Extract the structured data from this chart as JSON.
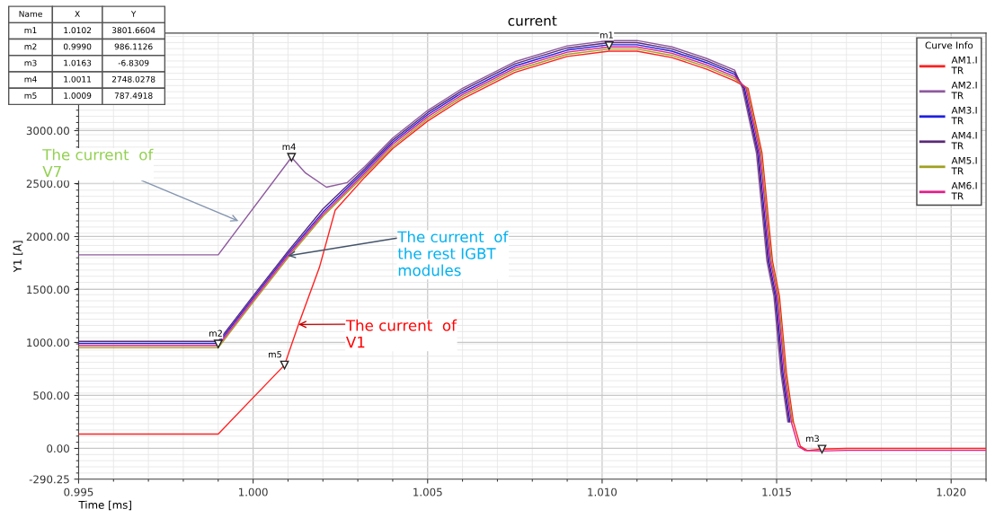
{
  "chart_data": {
    "type": "line",
    "title": "current",
    "xlabel": "Time [ms]",
    "ylabel": "Y1 [A]",
    "legend_title": "Curve Info",
    "xlim": [
      0.995,
      1.021
    ],
    "ylim": [
      -290.25,
      3920
    ],
    "xticks": [
      {
        "value": 0.995,
        "label": "0.995"
      },
      {
        "value": 1.0,
        "label": "1.000"
      },
      {
        "value": 1.005,
        "label": "1.005"
      },
      {
        "value": 1.01,
        "label": "1.010"
      },
      {
        "value": 1.015,
        "label": "1.015"
      },
      {
        "value": 1.02,
        "label": "1.020"
      }
    ],
    "yticks": [
      {
        "value": -290.25,
        "label": "-290.25"
      },
      {
        "value": 0,
        "label": "0.00"
      },
      {
        "value": 500,
        "label": "500.00"
      },
      {
        "value": 1000,
        "label": "1000.00"
      },
      {
        "value": 1500,
        "label": "1500.00"
      },
      {
        "value": 2000,
        "label": "2000.00"
      },
      {
        "value": 2500,
        "label": "2500.00"
      },
      {
        "value": 3000,
        "label": "3000.00"
      }
    ],
    "grid": true,
    "legend": "top right",
    "marker": "none",
    "line_style": "solid",
    "series": [
      {
        "name": "AM1.I\nTR",
        "color": "#ff2020",
        "x": [
          0.995,
          0.999,
          1.0009,
          1.0013,
          1.0019,
          1.00235,
          1.0032,
          1.004,
          1.005,
          1.006,
          1.0075,
          1.009,
          1.0102,
          1.011,
          1.012,
          1.013,
          1.0138,
          1.01418,
          1.01458,
          1.01488,
          1.01508,
          1.01528,
          1.01548,
          1.01568,
          1.01588,
          1.0163,
          1.017,
          1.021
        ],
        "values": [
          135,
          135,
          787,
          1170,
          1709,
          2247,
          2560,
          2830,
          3090,
          3300,
          3550,
          3700,
          3750,
          3750,
          3690,
          3580,
          3470,
          3400,
          2790,
          1770,
          1440,
          715,
          250,
          20,
          -20,
          -7,
          0,
          0
        ]
      },
      {
        "name": "AM2.I\nTR",
        "color": "#8e5a9e",
        "x": [
          0.995,
          0.999,
          1.0011,
          1.0015,
          1.0021,
          1.0027,
          1.0032,
          1.004,
          1.005,
          1.006,
          1.0075,
          1.009,
          1.0102,
          1.011,
          1.012,
          1.013,
          1.0138,
          1.01402,
          1.01442,
          1.01472,
          1.01492,
          1.01512,
          1.01532
        ],
        "values": [
          1827,
          1827,
          2748,
          2600,
          2466,
          2510,
          2660,
          2930,
          3190,
          3400,
          3650,
          3800,
          3850,
          3850,
          3790,
          3680,
          3570,
          3400,
          2790,
          1770,
          1440,
          715,
          250
        ]
      },
      {
        "name": "AM3.I\nTR",
        "color": "#2020e0",
        "x": [
          0.995,
          0.999,
          1.0,
          1.001,
          1.002,
          1.0032,
          1.004,
          1.005,
          1.006,
          1.0075,
          1.009,
          1.0102,
          1.011,
          1.012,
          1.013,
          1.0138,
          1.01408,
          1.01448,
          1.01478,
          1.01498,
          1.01518,
          1.01538
        ],
        "values": [
          990,
          990,
          1420,
          1840,
          2230,
          2620,
          2890,
          3150,
          3360,
          3610,
          3760,
          3810,
          3810,
          3750,
          3640,
          3530,
          3400,
          2790,
          1770,
          1440,
          715,
          250
        ]
      },
      {
        "name": "AM4.I\nTR",
        "color": "#5b2a78",
        "x": [
          0.995,
          0.999,
          1.0,
          1.001,
          1.002,
          1.0032,
          1.004,
          1.005,
          1.006,
          1.0075,
          1.009,
          1.0102,
          1.011,
          1.012,
          1.013,
          1.0138,
          1.01405,
          1.01445,
          1.01475,
          1.01495,
          1.01515,
          1.01535
        ],
        "values": [
          1010,
          1010,
          1440,
          1860,
          2260,
          2640,
          2910,
          3170,
          3380,
          3630,
          3780,
          3830,
          3830,
          3770,
          3660,
          3550,
          3400,
          2790,
          1770,
          1440,
          715,
          250
        ]
      },
      {
        "name": "AM5.I\nTR",
        "color": "#a0a020",
        "x": [
          0.995,
          0.999,
          1.0,
          1.001,
          1.002,
          1.0032,
          1.004,
          1.005,
          1.006,
          1.0075,
          1.009,
          1.0102,
          1.011,
          1.012,
          1.013,
          1.0138,
          1.01415,
          1.01455,
          1.01485,
          1.01505,
          1.01525,
          1.01545
        ],
        "values": [
          950,
          950,
          1380,
          1800,
          2190,
          2580,
          2850,
          3110,
          3320,
          3570,
          3720,
          3770,
          3770,
          3710,
          3600,
          3490,
          3400,
          2790,
          1770,
          1440,
          715,
          250
        ]
      },
      {
        "name": "AM6.I\nTR",
        "color": "#e0208a",
        "x": [
          0.995,
          0.999,
          1.0,
          1.001,
          1.002,
          1.0032,
          1.004,
          1.005,
          1.006,
          1.0075,
          1.009,
          1.0102,
          1.011,
          1.012,
          1.013,
          1.0138,
          1.01412,
          1.01452,
          1.01482,
          1.01502,
          1.01522,
          1.01542,
          1.01562,
          1.01582,
          1.0163,
          1.017,
          1.021
        ],
        "values": [
          970,
          970,
          1400,
          1820,
          2210,
          2600,
          2870,
          3130,
          3340,
          3590,
          3740,
          3790,
          3790,
          3730,
          3620,
          3510,
          3400,
          2790,
          1770,
          1440,
          715,
          250,
          20,
          -20,
          -25,
          -18,
          -18
        ]
      }
    ],
    "annotations": [
      "Name",
      "X",
      "Y",
      "m1",
      "1.0102",
      "3801.6604",
      "m2",
      "0.9990",
      "986.1126",
      "m3",
      "1.0163",
      "-6.8309",
      "m4",
      "1.0011",
      "2748.0278",
      "m5",
      "1.0009",
      "787.4918",
      {
        "text": "m1",
        "x": 1.0102,
        "y": 3801.6604
      },
      {
        "text": "m2",
        "x": 0.999,
        "y": 986.1126
      },
      {
        "text": "m3",
        "x": 1.0163,
        "y": -6.8309
      },
      {
        "text": "m4",
        "x": 1.0011,
        "y": 2748.0278
      },
      {
        "text": "m5",
        "x": 1.0009,
        "y": 787.4918
      },
      {
        "text": "The current  of\nV7",
        "x": 0.99958,
        "y": 2146
      },
      {
        "text": "The current  of\nthe rest IGBT\nmodules",
        "x": 1.00099,
        "y": 1818
      },
      {
        "text": "The current  of\nV1",
        "x": 1.0013,
        "y": 1170
      }
    ]
  }
}
